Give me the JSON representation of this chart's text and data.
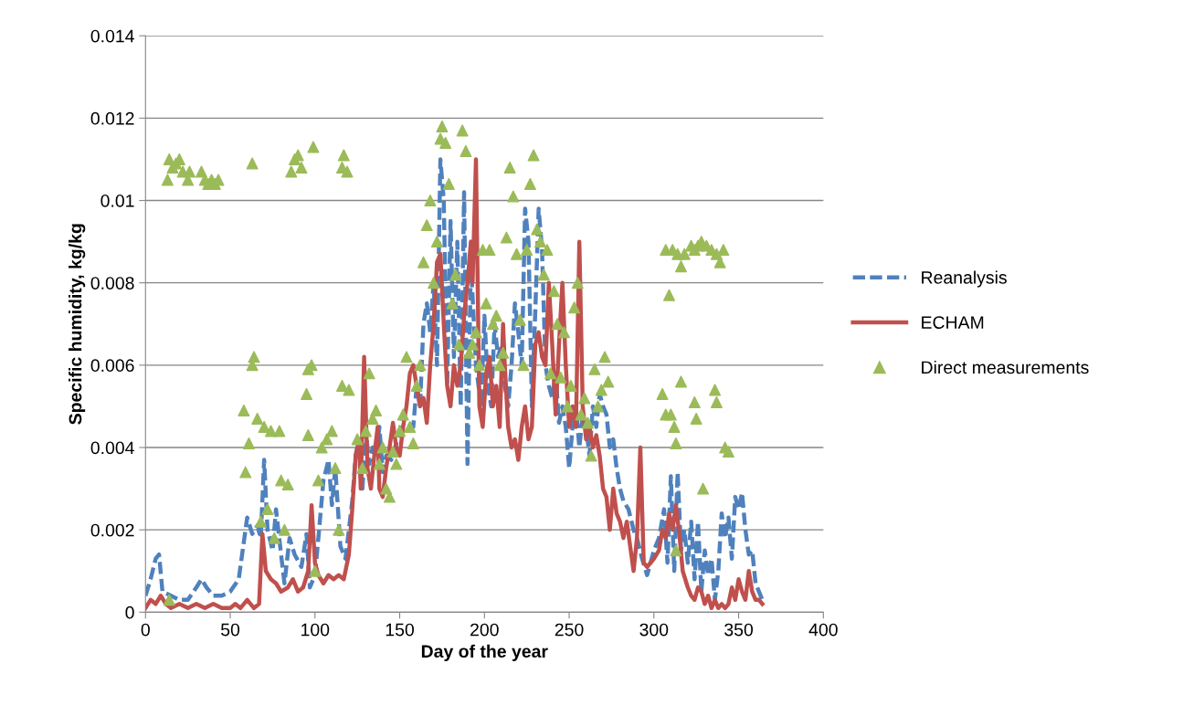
{
  "chart_data": {
    "type": "line",
    "xlabel": "Day of the year",
    "ylabel": "Specific humidity, kg/kg",
    "xlim": [
      0,
      400
    ],
    "xticks": [
      0,
      50,
      100,
      150,
      200,
      250,
      300,
      350,
      400
    ],
    "ylim": [
      0,
      0.014
    ],
    "yticks": [
      0,
      0.002,
      0.004,
      0.006,
      0.008,
      0.01,
      0.012,
      0.014
    ],
    "grid": "y",
    "legend": "right",
    "marker": "none",
    "series": [
      {
        "name": "Reanalysis",
        "line_style": "dashed",
        "color": "#4f81bd",
        "x": [
          0,
          3,
          6,
          8,
          10,
          15,
          20,
          25,
          30,
          33,
          36,
          40,
          45,
          50,
          55,
          58,
          60,
          63,
          66,
          68,
          70,
          72,
          75,
          77,
          80,
          82,
          85,
          88,
          92,
          95,
          97,
          100,
          102,
          105,
          108,
          110,
          112,
          115,
          118,
          120,
          122,
          124,
          126,
          128,
          130,
          132,
          134,
          136,
          138,
          140,
          142,
          145,
          148,
          150,
          152,
          155,
          158,
          160,
          162,
          164,
          166,
          168,
          170,
          172,
          174,
          176,
          178,
          180,
          182,
          184,
          186,
          188,
          190,
          192,
          195,
          198,
          200,
          202,
          204,
          206,
          208,
          210,
          212,
          214,
          216,
          218,
          220,
          222,
          224,
          226,
          228,
          230,
          232,
          234,
          236,
          238,
          240,
          242,
          244,
          246,
          248,
          250,
          252,
          254,
          256,
          258,
          260,
          262,
          264,
          266,
          268,
          270,
          272,
          274,
          276,
          278,
          280,
          282,
          285,
          288,
          290,
          293,
          296,
          300,
          303,
          306,
          308,
          310,
          312,
          314,
          316,
          318,
          320,
          322,
          324,
          326,
          328,
          330,
          332,
          334,
          336,
          338,
          340,
          342,
          344,
          346,
          348,
          350,
          352,
          354,
          356,
          358,
          360,
          362,
          364
        ],
        "values": [
          0.0004,
          0.0008,
          0.0013,
          0.0014,
          0.0005,
          0.0004,
          0.0003,
          0.0003,
          0.0006,
          0.0008,
          0.0006,
          0.0004,
          0.0004,
          0.0005,
          0.0008,
          0.0017,
          0.0023,
          0.0019,
          0.0021,
          0.0018,
          0.0037,
          0.002,
          0.0015,
          0.0025,
          0.0014,
          0.0007,
          0.0018,
          0.0014,
          0.0011,
          0.0019,
          0.0006,
          0.0009,
          0.0018,
          0.0032,
          0.0037,
          0.0026,
          0.0035,
          0.0016,
          0.0013,
          0.002,
          0.0027,
          0.0038,
          0.0042,
          0.003,
          0.0044,
          0.0036,
          0.004,
          0.0038,
          0.0045,
          0.0034,
          0.0038,
          0.0037,
          0.0041,
          0.0044,
          0.0048,
          0.0046,
          0.0045,
          0.0055,
          0.005,
          0.007,
          0.0075,
          0.0068,
          0.008,
          0.006,
          0.011,
          0.01,
          0.0055,
          0.0095,
          0.0062,
          0.009,
          0.005,
          0.0102,
          0.0036,
          0.0085,
          0.006,
          0.005,
          0.0072,
          0.0055,
          0.005,
          0.007,
          0.0062,
          0.0065,
          0.0055,
          0.005,
          0.006,
          0.0075,
          0.0068,
          0.006,
          0.0098,
          0.009,
          0.005,
          0.0073,
          0.0098,
          0.0088,
          0.006,
          0.0055,
          0.0052,
          0.0058,
          0.0046,
          0.005,
          0.0045,
          0.0035,
          0.0045,
          0.005,
          0.004,
          0.0048,
          0.0045,
          0.0038,
          0.005,
          0.0045,
          0.0053,
          0.005,
          0.0048,
          0.004,
          0.0042,
          0.0035,
          0.003,
          0.0027,
          0.0025,
          0.002,
          0.0018,
          0.0013,
          0.0009,
          0.0015,
          0.0018,
          0.0025,
          0.0012,
          0.0033,
          0.001,
          0.0034,
          0.0015,
          0.002,
          0.0012,
          0.0022,
          0.0008,
          0.0022,
          0.0005,
          0.0015,
          0.0009,
          0.0013,
          0.0003,
          0.001,
          0.0024,
          0.0018,
          0.0023,
          0.0013,
          0.0028,
          0.0025,
          0.0029,
          0.002,
          0.0014,
          0.0015,
          0.0007,
          0.0005,
          0.0003
        ]
      },
      {
        "name": "ECHAM",
        "line_style": "solid",
        "color": "#c0504d",
        "x": [
          0,
          3,
          6,
          9,
          12,
          15,
          20,
          25,
          30,
          35,
          40,
          45,
          50,
          53,
          56,
          60,
          64,
          67,
          69,
          71,
          74,
          77,
          80,
          84,
          87,
          90,
          93,
          96,
          98,
          100,
          102,
          105,
          108,
          111,
          114,
          117,
          120,
          122,
          124,
          126,
          127,
          129,
          131,
          133,
          135,
          137,
          138,
          140,
          142,
          144,
          146,
          148,
          150,
          152,
          154,
          156,
          158,
          160,
          162,
          164,
          166,
          168,
          170,
          172,
          174,
          176,
          178,
          180,
          182,
          184,
          186,
          188,
          190,
          192,
          193,
          195,
          197,
          199,
          201,
          203,
          205,
          207,
          209,
          211,
          212,
          214,
          216,
          218,
          220,
          222,
          224,
          226,
          228,
          230,
          232,
          234,
          236,
          238,
          240,
          242,
          244,
          246,
          248,
          250,
          252,
          254,
          256,
          258,
          260,
          262,
          264,
          266,
          268,
          270,
          272,
          274,
          276,
          278,
          280,
          282,
          284,
          286,
          288,
          290,
          292,
          294,
          296,
          298,
          300,
          303,
          305,
          307,
          309,
          311,
          313,
          315,
          317,
          320,
          322,
          324,
          326,
          328,
          330,
          332,
          334,
          336,
          338,
          340,
          342,
          344,
          346,
          348,
          350,
          352,
          354,
          356,
          358,
          360,
          362,
          364
        ],
        "values": [
          0.0001,
          0.0003,
          0.0002,
          0.0004,
          0.0002,
          0.0001,
          0.0002,
          0.0001,
          0.0002,
          0.0001,
          0.0002,
          0.0001,
          0.0001,
          0.0002,
          0.0001,
          0.0003,
          0.0001,
          0.0002,
          0.0019,
          0.001,
          0.0008,
          0.0007,
          0.0005,
          0.0006,
          0.0008,
          0.0005,
          0.0006,
          0.001,
          0.0026,
          0.0012,
          0.0009,
          0.0007,
          0.0009,
          0.0008,
          0.0009,
          0.0008,
          0.0014,
          0.0025,
          0.0038,
          0.0042,
          0.003,
          0.0062,
          0.0035,
          0.003,
          0.0038,
          0.0045,
          0.003,
          0.0028,
          0.0035,
          0.004,
          0.0046,
          0.004,
          0.0038,
          0.0045,
          0.005,
          0.0058,
          0.006,
          0.0055,
          0.005,
          0.0052,
          0.0046,
          0.006,
          0.007,
          0.0085,
          0.0087,
          0.007,
          0.0055,
          0.005,
          0.006,
          0.0055,
          0.006,
          0.0072,
          0.008,
          0.009,
          0.008,
          0.011,
          0.005,
          0.0045,
          0.0058,
          0.0062,
          0.005,
          0.0055,
          0.0045,
          0.007,
          0.006,
          0.0045,
          0.004,
          0.0042,
          0.0037,
          0.0045,
          0.005,
          0.0042,
          0.0045,
          0.0065,
          0.0068,
          0.0062,
          0.006,
          0.008,
          0.0065,
          0.0048,
          0.0065,
          0.008,
          0.006,
          0.0045,
          0.005,
          0.0045,
          0.009,
          0.005,
          0.0042,
          0.0045,
          0.004,
          0.0043,
          0.0038,
          0.003,
          0.0028,
          0.002,
          0.003,
          0.0024,
          0.0022,
          0.0018,
          0.0022,
          0.0016,
          0.001,
          0.0018,
          0.004,
          0.0012,
          0.0011,
          0.0012,
          0.0013,
          0.0015,
          0.002,
          0.0018,
          0.0024,
          0.002,
          0.0026,
          0.0019,
          0.001,
          0.0006,
          0.0004,
          0.0003,
          0.0006,
          0.0005,
          0.0002,
          0.0004,
          0.0001,
          0.0003,
          0.0001,
          0.0002,
          0.0001,
          0.0002,
          0.0006,
          0.0003,
          0.0008,
          0.0005,
          0.0003,
          0.001,
          0.0005,
          0.0003,
          0.0003,
          0.0002
        ]
      },
      {
        "name": "Direct measurements",
        "type": "scatter",
        "marker": "triangle",
        "color": "#9bbb59",
        "x": [
          13,
          14,
          16,
          18,
          20,
          22,
          25,
          26,
          33,
          35,
          37,
          39,
          41,
          43,
          14,
          63,
          86,
          88,
          92,
          90,
          99,
          116,
          117,
          119,
          58,
          59,
          61,
          63,
          64,
          66,
          68,
          70,
          72,
          74,
          76,
          79,
          80,
          82,
          84,
          96,
          95,
          96,
          98,
          100,
          102,
          104,
          107,
          110,
          112,
          114,
          116,
          120,
          125,
          128,
          130,
          132,
          134,
          136,
          138,
          140,
          142,
          144,
          146,
          148,
          150,
          152,
          154,
          156,
          158,
          160,
          162,
          164,
          166,
          168,
          170,
          172,
          174,
          175,
          177,
          179,
          181,
          183,
          185,
          187,
          189,
          191,
          193,
          195,
          197,
          199,
          201,
          203,
          205,
          207,
          209,
          211,
          213,
          215,
          217,
          219,
          221,
          223,
          225,
          227,
          229,
          231,
          233,
          235,
          237,
          239,
          241,
          243,
          245,
          247,
          249,
          251,
          253,
          255,
          257,
          259,
          261,
          263,
          265,
          267,
          269,
          271,
          273,
          307,
          309,
          311,
          314,
          316,
          318,
          322,
          324,
          326,
          328,
          331,
          334,
          337,
          339,
          341,
          305,
          307,
          310,
          312,
          313,
          316,
          324,
          325,
          329,
          336,
          337,
          342,
          344,
          313
        ],
        "values": [
          0.0105,
          0.011,
          0.0108,
          0.0109,
          0.011,
          0.0107,
          0.0105,
          0.0107,
          0.0107,
          0.0105,
          0.0104,
          0.0105,
          0.0104,
          0.0105,
          0.0003,
          0.0109,
          0.0107,
          0.011,
          0.0108,
          0.0111,
          0.0113,
          0.0108,
          0.0111,
          0.0107,
          0.0049,
          0.0034,
          0.0041,
          0.006,
          0.0062,
          0.0047,
          0.0022,
          0.0045,
          0.0025,
          0.0044,
          0.0018,
          0.0044,
          0.0032,
          0.002,
          0.0031,
          0.0043,
          0.0053,
          0.0059,
          0.006,
          0.001,
          0.0032,
          0.004,
          0.0042,
          0.0044,
          0.0035,
          0.002,
          0.0055,
          0.0054,
          0.0042,
          0.0035,
          0.0044,
          0.0058,
          0.0047,
          0.0049,
          0.0036,
          0.004,
          0.003,
          0.0028,
          0.0039,
          0.0036,
          0.0044,
          0.0048,
          0.0062,
          0.0045,
          0.0041,
          0.0055,
          0.006,
          0.0085,
          0.0094,
          0.01,
          0.008,
          0.009,
          0.0115,
          0.0118,
          0.0114,
          0.0104,
          0.0075,
          0.0082,
          0.0065,
          0.0117,
          0.0112,
          0.0063,
          0.0065,
          0.0068,
          0.006,
          0.0088,
          0.0075,
          0.0088,
          0.007,
          0.0072,
          0.006,
          0.0063,
          0.0091,
          0.0108,
          0.0101,
          0.0087,
          0.0071,
          0.006,
          0.0088,
          0.0104,
          0.0111,
          0.0093,
          0.009,
          0.0082,
          0.0088,
          0.0058,
          0.0078,
          0.007,
          0.0057,
          0.0068,
          0.005,
          0.0055,
          0.0074,
          0.008,
          0.0048,
          0.0052,
          0.0046,
          0.0038,
          0.0059,
          0.005,
          0.0054,
          0.0062,
          0.0056,
          0.0088,
          0.0077,
          0.0088,
          0.0087,
          0.0084,
          0.0087,
          0.0089,
          0.0088,
          0.0089,
          0.009,
          0.0089,
          0.0088,
          0.0087,
          0.0085,
          0.0088,
          0.0053,
          0.0048,
          0.0048,
          0.0045,
          0.0041,
          0.0056,
          0.0051,
          0.0047,
          0.003,
          0.0054,
          0.0051,
          0.004,
          0.0039,
          0.0015
        ]
      }
    ]
  }
}
